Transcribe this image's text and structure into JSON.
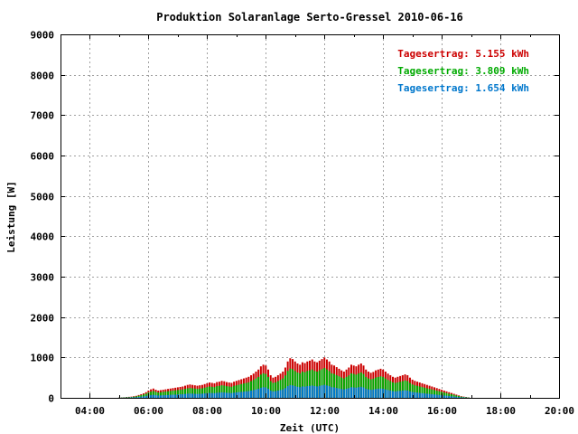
{
  "chart_data": {
    "type": "bar",
    "title": "Produktion Solaranlage Serto-Gressel 2010-06-16",
    "xlabel": "Zeit (UTC)",
    "ylabel": "Leistung [W]",
    "ylim": [
      0,
      9000
    ],
    "y_ticks": [
      0,
      1000,
      2000,
      3000,
      4000,
      5000,
      6000,
      7000,
      8000,
      9000
    ],
    "xlim_hours": [
      3,
      20
    ],
    "x_ticks": [
      {
        "hour": 4,
        "label": "04:00"
      },
      {
        "hour": 6,
        "label": "06:00"
      },
      {
        "hour": 8,
        "label": "08:00"
      },
      {
        "hour": 10,
        "label": "10:00"
      },
      {
        "hour": 12,
        "label": "12:00"
      },
      {
        "hour": 14,
        "label": "14:00"
      },
      {
        "hour": 16,
        "label": "16:00"
      },
      {
        "hour": 18,
        "label": "18:00"
      },
      {
        "hour": 20,
        "label": "20:00"
      }
    ],
    "grid": true,
    "legend_position": "top-right",
    "time_start": "05:00",
    "time_step_minutes": 5,
    "series": [
      {
        "label": "Tagesertrag: 5.155 kWh",
        "color": "#cc0000",
        "values": [
          5,
          10,
          15,
          20,
          25,
          30,
          40,
          50,
          70,
          90,
          110,
          140,
          180,
          210,
          230,
          200,
          180,
          190,
          200,
          210,
          220,
          230,
          240,
          250,
          260,
          270,
          280,
          300,
          320,
          330,
          320,
          310,
          300,
          310,
          320,
          340,
          360,
          380,
          370,
          360,
          390,
          400,
          420,
          410,
          390,
          380,
          370,
          400,
          420,
          440,
          460,
          480,
          500,
          520,
          560,
          600,
          650,
          700,
          780,
          820,
          800,
          700,
          560,
          500,
          520,
          560,
          600,
          650,
          750,
          900,
          980,
          960,
          900,
          850,
          820,
          880,
          860,
          900,
          920,
          950,
          900,
          880,
          920,
          960,
          1000,
          950,
          900,
          820,
          800,
          760,
          720,
          680,
          650,
          700,
          750,
          820,
          800,
          780,
          820,
          850,
          800,
          700,
          650,
          620,
          640,
          680,
          700,
          720,
          700,
          650,
          600,
          560,
          520,
          500,
          520,
          540,
          560,
          580,
          560,
          500,
          450,
          420,
          400,
          380,
          360,
          340,
          320,
          300,
          280,
          260,
          240,
          220,
          200,
          180,
          160,
          140,
          120,
          100,
          80,
          60,
          40,
          30,
          20,
          10
        ]
      },
      {
        "label": "Tagesertrag: 3.809 kWh",
        "color": "#00aa00",
        "values": [
          4,
          7,
          11,
          15,
          18,
          22,
          29,
          37,
          52,
          66,
          81,
          103,
          133,
          155,
          170,
          148,
          133,
          140,
          148,
          155,
          163,
          170,
          177,
          185,
          192,
          200,
          207,
          222,
          236,
          244,
          236,
          229,
          222,
          229,
          236,
          251,
          266,
          281,
          273,
          266,
          288,
          296,
          310,
          303,
          288,
          281,
          273,
          296,
          310,
          325,
          340,
          355,
          369,
          384,
          414,
          443,
          480,
          517,
          576,
          606,
          591,
          517,
          414,
          369,
          384,
          414,
          443,
          480,
          554,
          665,
          724,
          709,
          665,
          628,
          606,
          650,
          635,
          665,
          680,
          702,
          665,
          650,
          680,
          709,
          739,
          702,
          665,
          606,
          591,
          561,
          532,
          502,
          480,
          517,
          554,
          606,
          591,
          576,
          606,
          628,
          591,
          517,
          480,
          458,
          473,
          502,
          517,
          532,
          517,
          480,
          443,
          414,
          384,
          369,
          384,
          399,
          414,
          429,
          414,
          369,
          333,
          310,
          296,
          281,
          266,
          251,
          236,
          222,
          207,
          192,
          177,
          163,
          148,
          133,
          118,
          103,
          89,
          74,
          59,
          44,
          30,
          22,
          15,
          7
        ]
      },
      {
        "label": "Tagesertrag: 1.654 kWh",
        "color": "#0077cc",
        "values": [
          2,
          3,
          5,
          6,
          8,
          10,
          13,
          16,
          22,
          29,
          35,
          45,
          58,
          67,
          74,
          64,
          58,
          61,
          64,
          67,
          71,
          74,
          77,
          80,
          83,
          87,
          90,
          96,
          103,
          106,
          103,
          99,
          96,
          99,
          103,
          109,
          115,
          122,
          119,
          115,
          125,
          128,
          135,
          132,
          125,
          122,
          119,
          128,
          135,
          141,
          148,
          154,
          160,
          167,
          180,
          193,
          209,
          225,
          250,
          263,
          257,
          225,
          180,
          160,
          167,
          180,
          193,
          209,
          241,
          289,
          315,
          308,
          289,
          273,
          263,
          282,
          276,
          289,
          295,
          305,
          289,
          282,
          295,
          308,
          321,
          305,
          289,
          263,
          257,
          244,
          231,
          218,
          209,
          225,
          241,
          263,
          257,
          250,
          263,
          273,
          257,
          225,
          209,
          199,
          206,
          218,
          225,
          231,
          225,
          209,
          193,
          180,
          167,
          160,
          167,
          173,
          180,
          186,
          180,
          160,
          145,
          135,
          128,
          122,
          115,
          109,
          103,
          96,
          90,
          83,
          77,
          71,
          64,
          58,
          51,
          45,
          38,
          32,
          26,
          19,
          13,
          10,
          6,
          3
        ]
      }
    ]
  }
}
